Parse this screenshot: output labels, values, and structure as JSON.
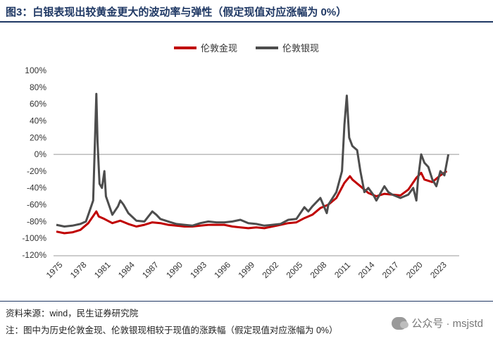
{
  "header": {
    "title": "图3：白银表现出较黄金更大的波动率与弹性（假定现值对应涨幅为 0%）"
  },
  "footer": {
    "source": "资料来源：wind，民生证券研究院",
    "note": "注：图中为历史伦敦金现、伦敦银现相较于现值的涨跌幅（假定现值对应涨幅为 0%）",
    "watermark": "公众号 · msjstd"
  },
  "colors": {
    "gold": "#c00000",
    "silver": "#4d4d4d",
    "axis": "#999999",
    "title": "#1f3864"
  },
  "chart_data": {
    "type": "line",
    "title": "",
    "xlabel": "",
    "ylabel": "",
    "ylim": [
      -120,
      100
    ],
    "xlim": [
      1975,
      2025
    ],
    "yticks": [
      "100%",
      "80%",
      "60%",
      "40%",
      "20%",
      "0%",
      "-20%",
      "-40%",
      "-60%",
      "-80%",
      "-100%",
      "-120%"
    ],
    "xticks": [
      "1975",
      "1978",
      "1981",
      "1984",
      "1987",
      "1990",
      "1993",
      "1996",
      "1999",
      "2002",
      "2005",
      "2008",
      "2011",
      "2014",
      "2017",
      "2020",
      "2023"
    ],
    "legend_position": "top-center",
    "grid": false,
    "series": [
      {
        "name": "伦敦金现",
        "color": "#c00000",
        "points": [
          [
            1975,
            -92
          ],
          [
            1976,
            -94
          ],
          [
            1977,
            -93
          ],
          [
            1978,
            -90
          ],
          [
            1979,
            -82
          ],
          [
            1980,
            -68
          ],
          [
            1980.3,
            -74
          ],
          [
            1981,
            -77
          ],
          [
            1982,
            -82
          ],
          [
            1983,
            -79
          ],
          [
            1984,
            -83
          ],
          [
            1985,
            -86
          ],
          [
            1986,
            -84
          ],
          [
            1987,
            -81
          ],
          [
            1988,
            -82
          ],
          [
            1989,
            -84
          ],
          [
            1990,
            -85
          ],
          [
            1991,
            -86
          ],
          [
            1992,
            -86
          ],
          [
            1993,
            -85
          ],
          [
            1994,
            -84
          ],
          [
            1995,
            -84
          ],
          [
            1996,
            -84
          ],
          [
            1997,
            -86
          ],
          [
            1998,
            -87
          ],
          [
            1999,
            -88
          ],
          [
            2000,
            -87
          ],
          [
            2001,
            -88
          ],
          [
            2002,
            -86
          ],
          [
            2003,
            -84
          ],
          [
            2004,
            -82
          ],
          [
            2005,
            -81
          ],
          [
            2006,
            -76
          ],
          [
            2007,
            -72
          ],
          [
            2008,
            -64
          ],
          [
            2009,
            -60
          ],
          [
            2010,
            -52
          ],
          [
            2011,
            -34
          ],
          [
            2011.7,
            -26
          ],
          [
            2012,
            -30
          ],
          [
            2013,
            -38
          ],
          [
            2014,
            -46
          ],
          [
            2015,
            -50
          ],
          [
            2016,
            -47
          ],
          [
            2017,
            -48
          ],
          [
            2018,
            -49
          ],
          [
            2019,
            -42
          ],
          [
            2020,
            -28
          ],
          [
            2020.6,
            -22
          ],
          [
            2021,
            -30
          ],
          [
            2022,
            -33
          ],
          [
            2023,
            -25
          ],
          [
            2023.8,
            -20
          ]
        ]
      },
      {
        "name": "伦敦银现",
        "color": "#4d4d4d",
        "points": [
          [
            1975,
            -84
          ],
          [
            1976,
            -86
          ],
          [
            1977,
            -85
          ],
          [
            1978,
            -83
          ],
          [
            1978.7,
            -80
          ],
          [
            1979,
            -72
          ],
          [
            1979.6,
            -55
          ],
          [
            1980.0,
            72
          ],
          [
            1980.15,
            15
          ],
          [
            1980.4,
            -35
          ],
          [
            1980.7,
            -40
          ],
          [
            1981,
            -20
          ],
          [
            1981.2,
            -50
          ],
          [
            1982,
            -72
          ],
          [
            1982.7,
            -62
          ],
          [
            1983,
            -55
          ],
          [
            1983.4,
            -60
          ],
          [
            1984,
            -70
          ],
          [
            1985,
            -79
          ],
          [
            1986,
            -80
          ],
          [
            1987,
            -68
          ],
          [
            1987.5,
            -72
          ],
          [
            1988,
            -77
          ],
          [
            1989,
            -80
          ],
          [
            1990,
            -83
          ],
          [
            1991,
            -84
          ],
          [
            1992,
            -85
          ],
          [
            1993,
            -82
          ],
          [
            1994,
            -80
          ],
          [
            1995,
            -81
          ],
          [
            1996,
            -81
          ],
          [
            1997,
            -80
          ],
          [
            1998,
            -78
          ],
          [
            1999,
            -82
          ],
          [
            2000,
            -83
          ],
          [
            2001,
            -85
          ],
          [
            2002,
            -84
          ],
          [
            2003,
            -83
          ],
          [
            2004,
            -78
          ],
          [
            2005,
            -77
          ],
          [
            2006,
            -63
          ],
          [
            2006.5,
            -68
          ],
          [
            2007,
            -62
          ],
          [
            2008,
            -52
          ],
          [
            2008.8,
            -70
          ],
          [
            2009,
            -60
          ],
          [
            2010,
            -45
          ],
          [
            2010.7,
            -20
          ],
          [
            2011,
            35
          ],
          [
            2011.3,
            70
          ],
          [
            2011.6,
            20
          ],
          [
            2012,
            10
          ],
          [
            2012.6,
            5
          ],
          [
            2013,
            -20
          ],
          [
            2013.5,
            -45
          ],
          [
            2014,
            -40
          ],
          [
            2014.6,
            -48
          ],
          [
            2015,
            -55
          ],
          [
            2016,
            -38
          ],
          [
            2016.5,
            -45
          ],
          [
            2017,
            -48
          ],
          [
            2018,
            -52
          ],
          [
            2019,
            -48
          ],
          [
            2019.6,
            -40
          ],
          [
            2020,
            -55
          ],
          [
            2020.2,
            -30
          ],
          [
            2020.6,
            0
          ],
          [
            2021,
            -10
          ],
          [
            2021.5,
            -15
          ],
          [
            2022,
            -30
          ],
          [
            2022.5,
            -38
          ],
          [
            2023,
            -20
          ],
          [
            2023.5,
            -25
          ],
          [
            2024,
            0
          ]
        ]
      }
    ]
  }
}
